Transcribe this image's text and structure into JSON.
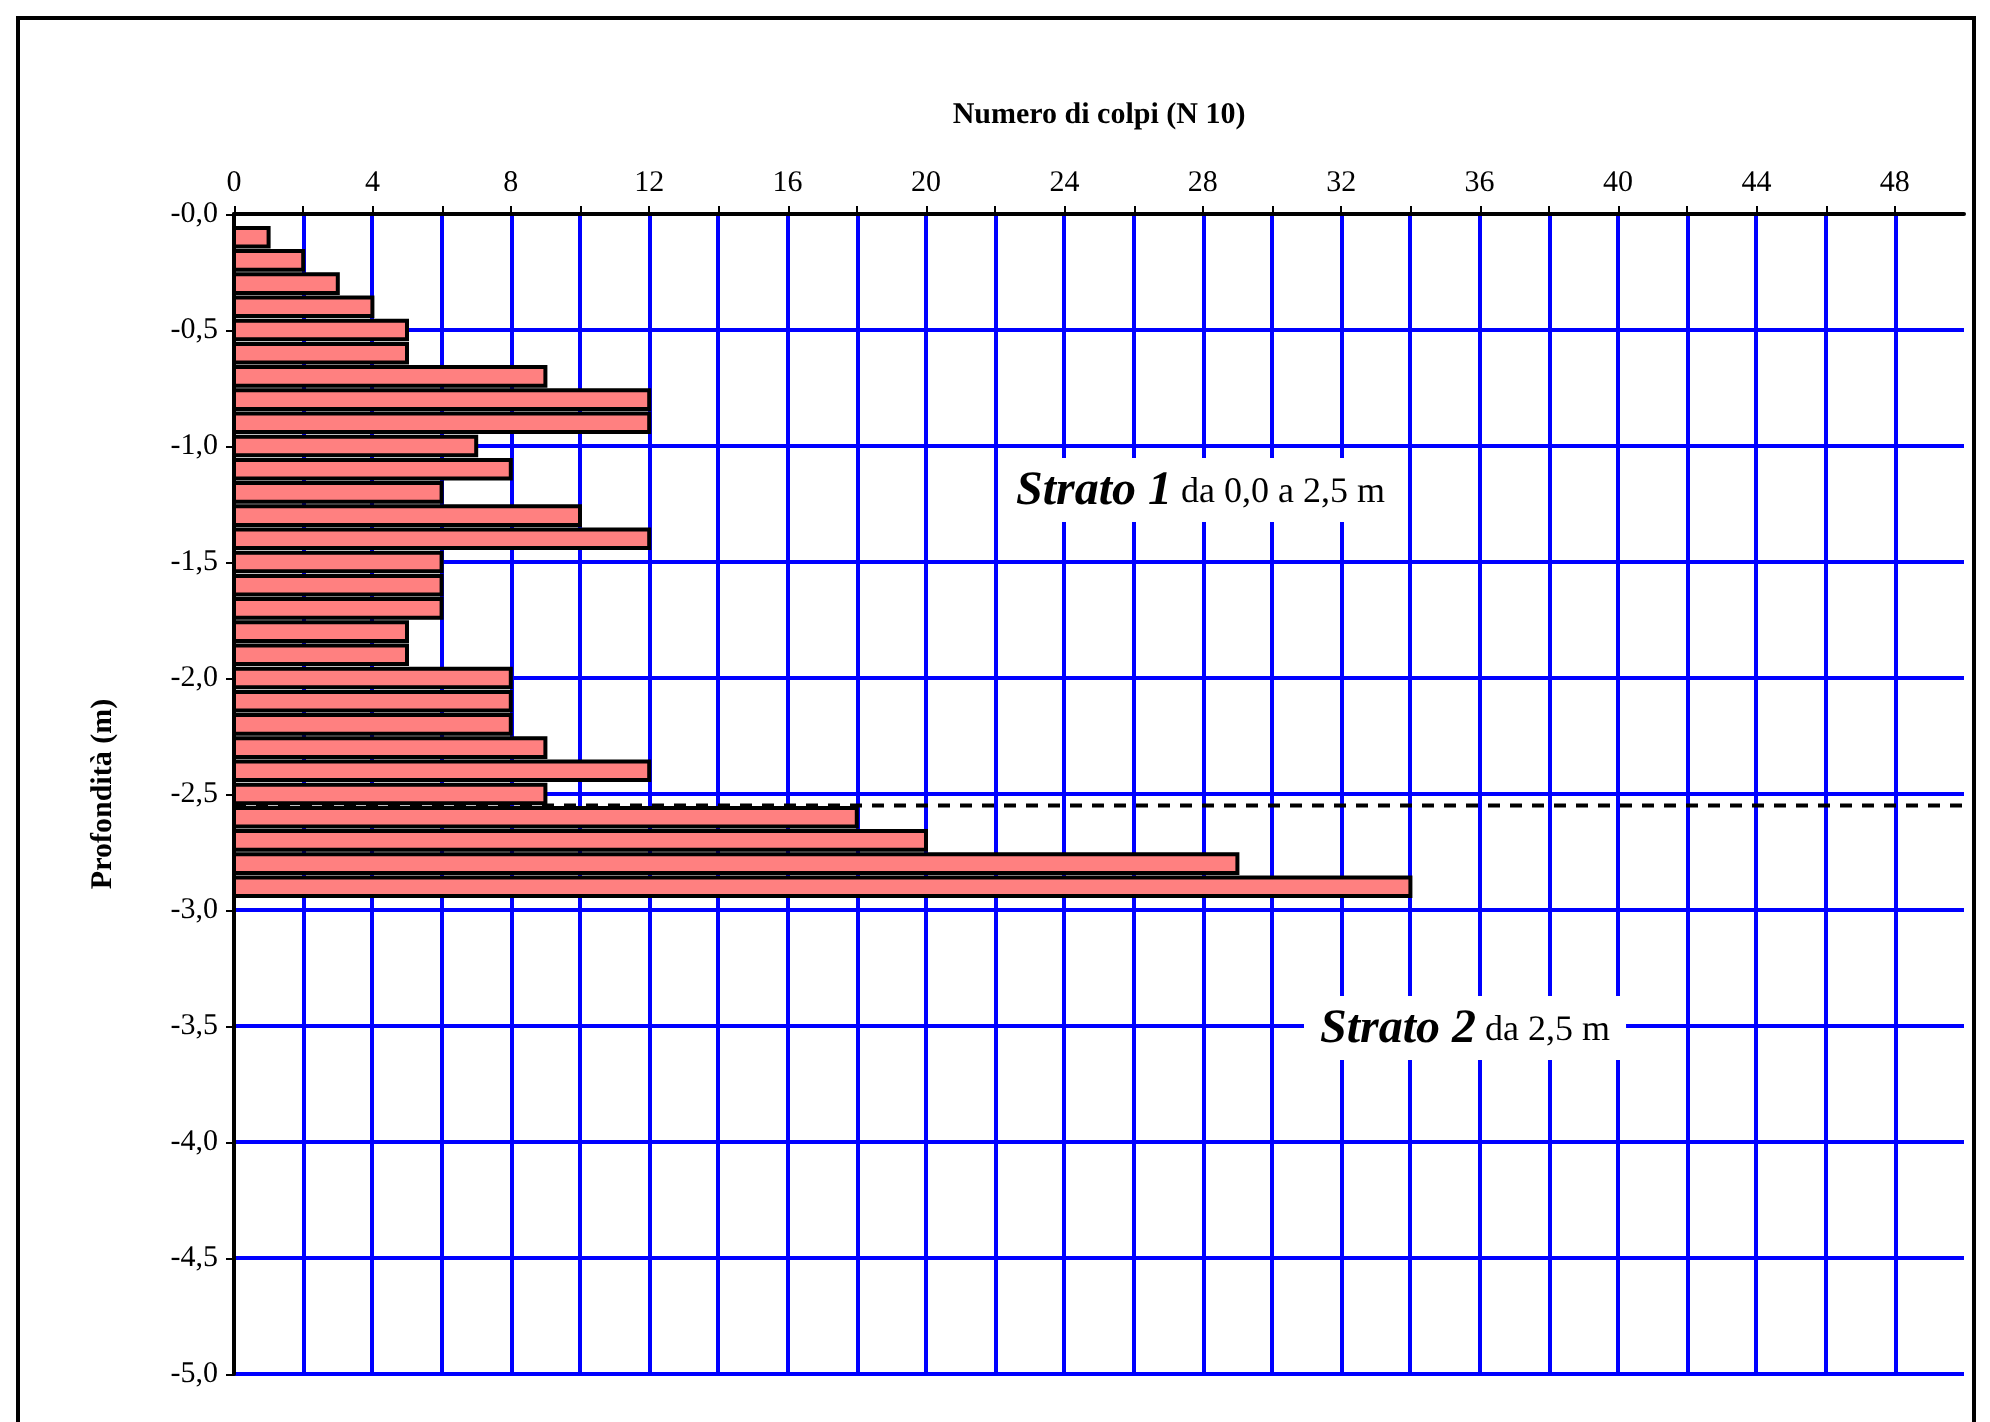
{
  "chart_data": {
    "type": "bar",
    "orientation": "horizontal",
    "xlabel": "Numero di colpi (N 10)",
    "ylabel": "Profondità (m)",
    "x": [
      -0.1,
      -0.2,
      -0.3,
      -0.4,
      -0.5,
      -0.6,
      -0.7,
      -0.8,
      -0.9,
      -1.0,
      -1.1,
      -1.2,
      -1.3,
      -1.4,
      -1.5,
      -1.6,
      -1.7,
      -1.8,
      -1.9,
      -2.0,
      -2.1,
      -2.2,
      -2.3,
      -2.4,
      -2.5,
      -2.6,
      -2.7,
      -2.8,
      -2.9
    ],
    "values": [
      1,
      2,
      3,
      4,
      5,
      5,
      9,
      12,
      12,
      7,
      8,
      6,
      10,
      12,
      6,
      6,
      6,
      5,
      5,
      8,
      8,
      8,
      9,
      12,
      9,
      18,
      20,
      29,
      34
    ],
    "color": "#ff8080",
    "xlim": [
      0,
      50
    ],
    "xticks": [
      0,
      {
        "value": 2,
        "label": null
      },
      4,
      {
        "value": 6,
        "label": null
      },
      8,
      {
        "value": 10,
        "label": null
      },
      12,
      {
        "value": 14,
        "label": null
      },
      16,
      {
        "value": 18,
        "label": null
      },
      20,
      {
        "value": 22,
        "label": null
      },
      24,
      {
        "value": 26,
        "label": null
      },
      28,
      {
        "value": 30,
        "label": null
      },
      32,
      {
        "value": 34,
        "label": null
      },
      36,
      {
        "value": 38,
        "label": null
      },
      40,
      {
        "value": 42,
        "label": null
      },
      44,
      {
        "value": 46,
        "label": null
      },
      48
    ],
    "ylim": [
      -5,
      0
    ],
    "yticks": [
      {
        "value": -5,
        "label": "-5,0"
      },
      {
        "value": -4.5,
        "label": "-4,5"
      },
      {
        "value": -4,
        "label": "-4,0"
      },
      {
        "value": -3.5,
        "label": "-3,5"
      },
      {
        "value": -3,
        "label": "-3,0"
      },
      {
        "value": -2.5,
        "label": "-2,5"
      },
      {
        "value": -2,
        "label": "-2,0"
      },
      {
        "value": -1.5,
        "label": "-1,5"
      },
      {
        "value": -1,
        "label": "-1,0"
      },
      {
        "value": -0.5,
        "label": "-0,5"
      },
      {
        "value": 0,
        "label": "-0,0"
      }
    ],
    "grid": true,
    "ref_lines": [
      {
        "axis": "y",
        "value": -2.55,
        "label": null,
        "color": "#000000",
        "line_style": "dashed"
      }
    ],
    "annotations": [
      "Strato 1 da 0,0 a 2,5 m",
      "Strato 2 da 2,5 m"
    ]
  }
}
